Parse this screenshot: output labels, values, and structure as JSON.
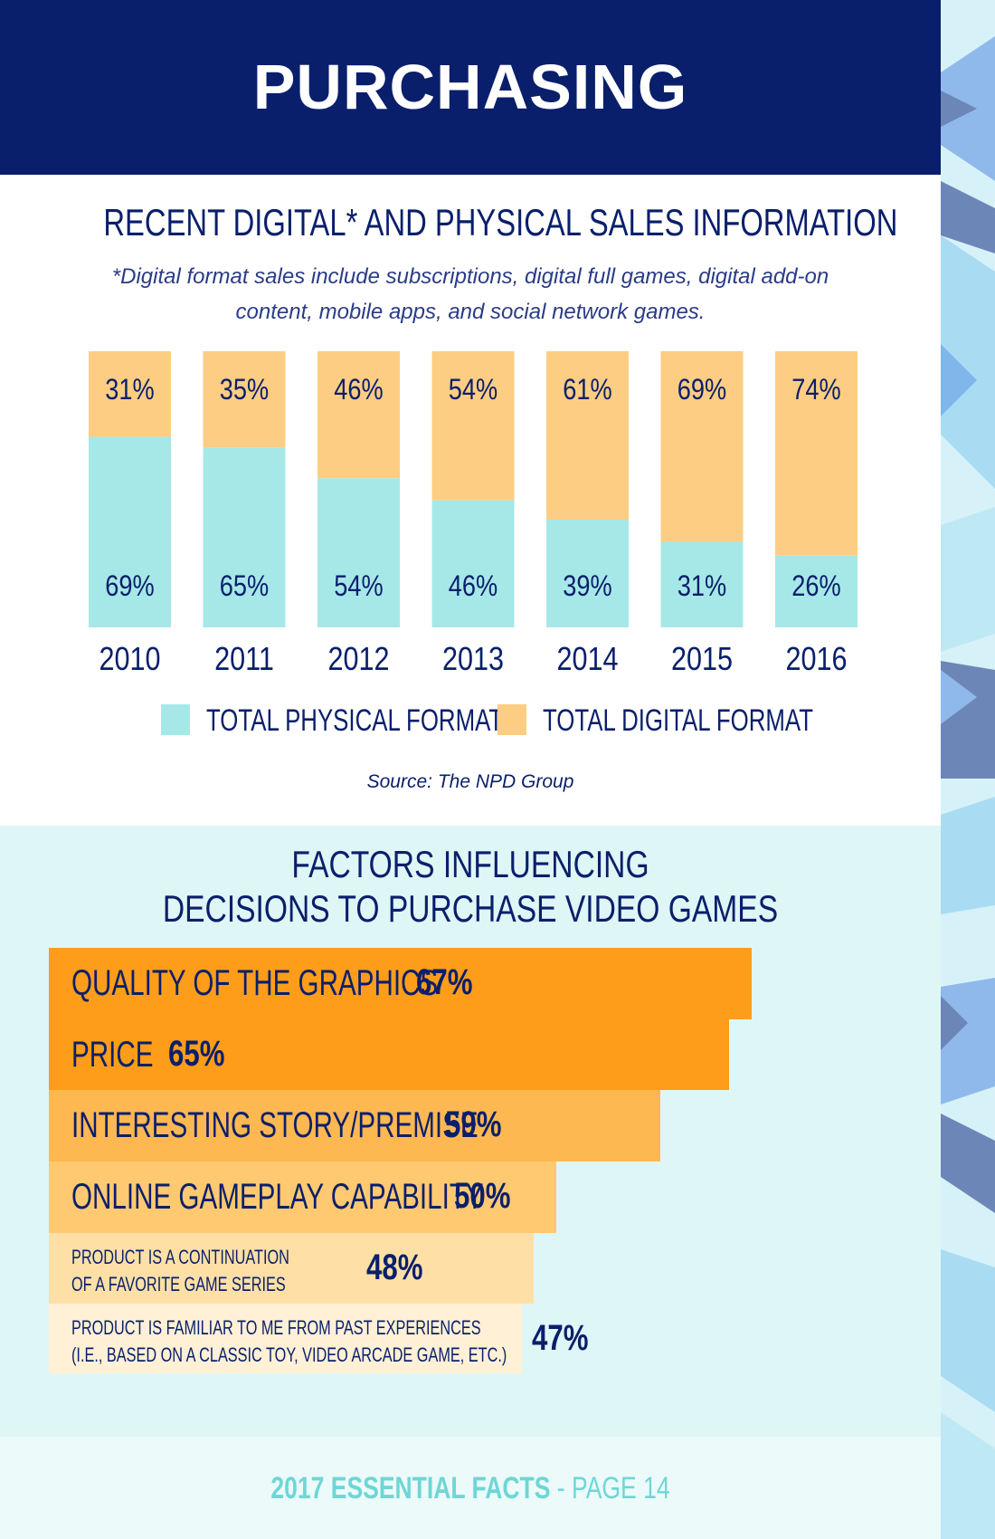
{
  "header": {
    "title": "PURCHASING"
  },
  "sales": {
    "title": "RECENT DIGITAL* AND PHYSICAL SALES INFORMATION",
    "footnote": "*Digital format sales include subscriptions, digital full games, digital add-on content, mobile apps, and social network games.",
    "source": "Source: The NPD Group"
  },
  "factors": {
    "title_line1": "FACTORS INFLUENCING",
    "title_line2": "DECISIONS TO PURCHASE VIDEO GAMES"
  },
  "footer": {
    "left": "2017 ESSENTIAL FACTS",
    "sep": " - ",
    "right": "PAGE 14"
  },
  "colors": {
    "navy": "#0a1f6b",
    "physical": "#a6e8e8",
    "digital": "#fdcd83",
    "factor_shades": [
      "#fd9d1a",
      "#fd9d1a",
      "#feb851",
      "#fec970",
      "#fee0a6",
      "#fff0d6"
    ]
  },
  "chart_data": [
    {
      "type": "bar",
      "stacked": true,
      "categories": [
        "2010",
        "2011",
        "2012",
        "2013",
        "2014",
        "2015",
        "2016"
      ],
      "series": [
        {
          "name": "TOTAL PHYSICAL FORMAT",
          "values": [
            69,
            65,
            54,
            46,
            39,
            31,
            26
          ],
          "labels": [
            "69%",
            "65%",
            "54%",
            "46%",
            "39%",
            "31%",
            "26%"
          ]
        },
        {
          "name": "TOTAL DIGITAL FORMAT",
          "values": [
            31,
            35,
            46,
            54,
            61,
            69,
            74
          ],
          "labels": [
            "31%",
            "35%",
            "46%",
            "54%",
            "61%",
            "69%",
            "74%"
          ]
        }
      ],
      "ylim": [
        0,
        100
      ],
      "legend": "bottom"
    },
    {
      "type": "bar",
      "orientation": "horizontal",
      "categories": [
        "QUALITY OF THE GRAPHICS",
        "PRICE",
        "INTERESTING STORY/PREMISE",
        "ONLINE GAMEPLAY CAPABILITY",
        "PRODUCT IS A CONTINUATION\nOF A FAVORITE GAME SERIES",
        "PRODUCT IS FAMILIAR TO ME FROM PAST EXPERIENCES\n(I.E., BASED ON A CLASSIC TOY, VIDEO ARCADE GAME, ETC.)"
      ],
      "values": [
        67,
        65,
        59,
        50,
        48,
        47
      ],
      "labels": [
        "67%",
        "65%",
        "59%",
        "50%",
        "48%",
        "47%"
      ]
    }
  ]
}
